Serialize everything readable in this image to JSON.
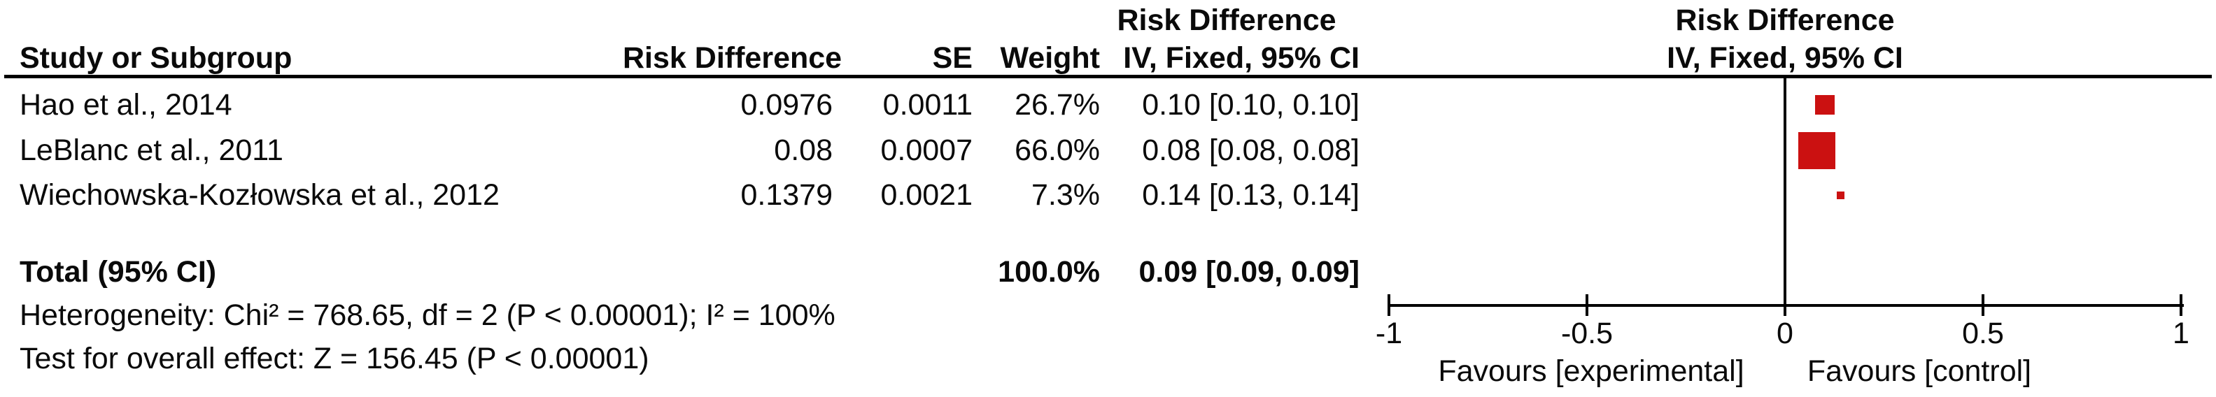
{
  "chart_data": {
    "type": "forest",
    "effect_measure": "Risk Difference",
    "model": "IV, Fixed, 95% CI",
    "table_header": {
      "group_top": "Risk Difference",
      "study": "Study or Subgroup",
      "risk_difference": "Risk Difference",
      "se": "SE",
      "weight": "Weight",
      "ci": "IV, Fixed, 95% CI"
    },
    "plot_header": {
      "line1": "Risk Difference",
      "line2": "IV, Fixed, 95% CI"
    },
    "studies": [
      {
        "name": "Hao et al., 2014",
        "risk_difference": "0.0976",
        "se": "0.0011",
        "weight": "26.7%",
        "ci_text": "0.10 [0.10, 0.10]",
        "estimate": 0.1,
        "ci_low": 0.1,
        "ci_high": 0.1
      },
      {
        "name": "LeBlanc et al., 2011",
        "risk_difference": "0.08",
        "se": "0.0007",
        "weight": "66.0%",
        "ci_text": "0.08 [0.08, 0.08]",
        "estimate": 0.08,
        "ci_low": 0.08,
        "ci_high": 0.08
      },
      {
        "name": "Wiechowska-Kozłowska et al., 2012",
        "risk_difference": "0.1379",
        "se": "0.0021",
        "weight": "7.3%",
        "ci_text": "0.14 [0.13, 0.14]",
        "estimate": 0.14,
        "ci_low": 0.13,
        "ci_high": 0.14
      }
    ],
    "total": {
      "label": "Total (95% CI)",
      "weight": "100.0%",
      "ci_text": "0.09 [0.09, 0.09]",
      "estimate": 0.09,
      "ci_low": 0.09,
      "ci_high": 0.09
    },
    "heterogeneity": "Heterogeneity: Chi² = 768.65, df = 2 (P < 0.00001); I² = 100%",
    "overall_effect": "Test for overall effect: Z = 156.45 (P < 0.00001)",
    "axis": {
      "min": -1,
      "max": 1,
      "ticks": [
        "-1",
        "-0.5",
        "0",
        "0.5",
        "1"
      ],
      "left_label": "Favours [experimental]",
      "right_label": "Favours [control]"
    },
    "marker_color": "#cb1111",
    "line_color": "#000000",
    "grid": false,
    "legend": false
  }
}
